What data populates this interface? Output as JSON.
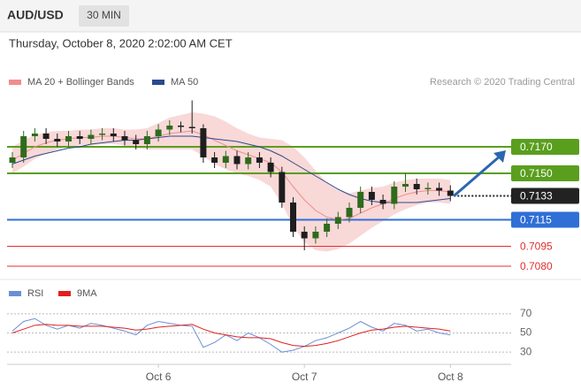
{
  "header": {
    "symbol": "AUD/USD",
    "timeframe": "30 MIN"
  },
  "chart_data": [
    {
      "type": "candlestick",
      "subtitle": "Thursday, October 8, 2020 2:02:00 AM CET",
      "credit": "Research © 2020 Trading Central",
      "open": [
        0.7158,
        0.7162,
        0.7178,
        0.718,
        0.7176,
        0.7174,
        0.7178,
        0.7176,
        0.7179,
        0.718,
        0.7178,
        0.7175,
        0.7172,
        0.7178,
        0.7183,
        0.7186,
        0.7185,
        0.7184,
        0.7162,
        0.7158,
        0.7163,
        0.7157,
        0.7162,
        0.7158,
        0.7151,
        0.7128,
        0.7106,
        0.7101,
        0.7106,
        0.7112,
        0.7117,
        0.7124,
        0.7136,
        0.713,
        0.7127,
        0.714,
        0.7142,
        0.7138,
        0.7139,
        0.7137
      ],
      "high": [
        0.7166,
        0.7182,
        0.7184,
        0.7184,
        0.718,
        0.7182,
        0.7182,
        0.7183,
        0.7184,
        0.7184,
        0.7182,
        0.7179,
        0.7182,
        0.7187,
        0.719,
        0.7189,
        0.7205,
        0.7187,
        0.7166,
        0.7167,
        0.7167,
        0.7166,
        0.7166,
        0.7162,
        0.7155,
        0.7132,
        0.711,
        0.711,
        0.7116,
        0.7121,
        0.7128,
        0.714,
        0.714,
        0.7134,
        0.7144,
        0.715,
        0.7146,
        0.7143,
        0.7143,
        0.7141
      ],
      "low": [
        0.7154,
        0.7158,
        0.7174,
        0.7172,
        0.717,
        0.717,
        0.7172,
        0.7172,
        0.7175,
        0.7174,
        0.7171,
        0.7168,
        0.7168,
        0.7174,
        0.7179,
        0.7181,
        0.718,
        0.7158,
        0.7154,
        0.7154,
        0.7153,
        0.7153,
        0.7154,
        0.7147,
        0.7124,
        0.7102,
        0.7092,
        0.7097,
        0.7102,
        0.7108,
        0.7113,
        0.712,
        0.7126,
        0.7123,
        0.7123,
        0.7136,
        0.7134,
        0.7134,
        0.7133,
        0.7129
      ],
      "close": [
        0.7162,
        0.7178,
        0.718,
        0.7176,
        0.7174,
        0.7178,
        0.7176,
        0.7179,
        0.718,
        0.7178,
        0.7175,
        0.7172,
        0.7178,
        0.7183,
        0.7186,
        0.7185,
        0.7184,
        0.7162,
        0.7158,
        0.7163,
        0.7157,
        0.7162,
        0.7158,
        0.7151,
        0.7128,
        0.7106,
        0.7101,
        0.7106,
        0.7112,
        0.7117,
        0.7124,
        0.7136,
        0.713,
        0.7127,
        0.714,
        0.7142,
        0.7138,
        0.7139,
        0.7137,
        0.7133
      ],
      "colors": {
        "up": "#2f6b1c",
        "down": "#1e1e1e"
      },
      "series": [
        {
          "name": "MA 20 + Bollinger Bands",
          "color": "#ef8e8e",
          "values": [
            0.716,
            0.7165,
            0.717,
            0.7173,
            0.7175,
            0.7176,
            0.7177,
            0.7177,
            0.7178,
            0.7178,
            0.7177,
            0.7176,
            0.7176,
            0.7178,
            0.718,
            0.7181,
            0.7182,
            0.7179,
            0.7175,
            0.7171,
            0.7167,
            0.7164,
            0.7161,
            0.7158,
            0.7151,
            0.714,
            0.713,
            0.7122,
            0.7117,
            0.7115,
            0.7116,
            0.712,
            0.7124,
            0.7127,
            0.7131,
            0.7134,
            0.7136,
            0.7137,
            0.7137,
            0.7136
          ],
          "upper": [
            0.717,
            0.7175,
            0.7179,
            0.7181,
            0.7182,
            0.7182,
            0.7183,
            0.7183,
            0.7184,
            0.7184,
            0.7183,
            0.7183,
            0.7184,
            0.7188,
            0.7192,
            0.7194,
            0.7196,
            0.7195,
            0.7193,
            0.7189,
            0.7184,
            0.718,
            0.7177,
            0.7176,
            0.7175,
            0.717,
            0.7162,
            0.7152,
            0.7143,
            0.7137,
            0.7135,
            0.7137,
            0.7139,
            0.714,
            0.7143,
            0.7145,
            0.7146,
            0.7146,
            0.7146,
            0.7145
          ],
          "lower": [
            0.715,
            0.7155,
            0.7161,
            0.7165,
            0.7168,
            0.717,
            0.7171,
            0.7171,
            0.7172,
            0.7172,
            0.7171,
            0.7169,
            0.7168,
            0.7168,
            0.7168,
            0.7168,
            0.7168,
            0.7163,
            0.7157,
            0.7153,
            0.715,
            0.7148,
            0.7145,
            0.714,
            0.7127,
            0.711,
            0.7098,
            0.7092,
            0.7091,
            0.7093,
            0.7097,
            0.7103,
            0.7109,
            0.7114,
            0.7119,
            0.7123,
            0.7126,
            0.7128,
            0.7128,
            0.7127
          ]
        },
        {
          "name": "MA 50",
          "color": "#2a4b8d",
          "values": [
            0.7157,
            0.716,
            0.7163,
            0.7165,
            0.7167,
            0.7169,
            0.717,
            0.7172,
            0.7173,
            0.7174,
            0.7175,
            0.7175,
            0.7176,
            0.7177,
            0.7178,
            0.7178,
            0.7178,
            0.7177,
            0.7176,
            0.7175,
            0.7174,
            0.7172,
            0.717,
            0.7167,
            0.7163,
            0.7158,
            0.7153,
            0.7148,
            0.7143,
            0.7138,
            0.7134,
            0.7131,
            0.7129,
            0.7128,
            0.7128,
            0.7128,
            0.7128,
            0.7129,
            0.713,
            0.7131
          ]
        }
      ],
      "levels": [
        {
          "value": 0.717,
          "label": "0.7170",
          "color": "#5a9e1e",
          "tag": true,
          "style": "solid"
        },
        {
          "value": 0.715,
          "label": "0.7150",
          "color": "#5a9e1e",
          "tag": true,
          "style": "solid"
        },
        {
          "value": 0.7133,
          "label": "0.7133",
          "color": "#222222",
          "tag": true,
          "style": "dotted"
        },
        {
          "value": 0.7115,
          "label": "0.7115",
          "color": "#2f6fd6",
          "tag": true,
          "style": "solid"
        },
        {
          "value": 0.7095,
          "label": "0.7095",
          "color": "#e03030",
          "tag": false,
          "style": "solid"
        },
        {
          "value": 0.708,
          "label": "0.7080",
          "color": "#e03030",
          "tag": false,
          "style": "solid"
        }
      ],
      "ylim": [
        0.7074,
        0.721
      ]
    },
    {
      "type": "line",
      "categories": [
        null,
        null,
        null,
        null,
        null,
        null,
        null,
        null,
        null,
        null,
        null,
        null,
        null,
        "Oct 6",
        null,
        null,
        null,
        null,
        null,
        null,
        null,
        null,
        null,
        null,
        null,
        null,
        "Oct 7",
        null,
        null,
        null,
        null,
        null,
        null,
        null,
        null,
        null,
        null,
        null,
        null,
        "Oct 8"
      ],
      "series": [
        {
          "name": "RSI",
          "color": "#6b8fd6",
          "values": [
            52,
            62,
            65,
            58,
            54,
            58,
            55,
            60,
            58,
            55,
            52,
            48,
            58,
            62,
            60,
            58,
            57,
            35,
            40,
            48,
            42,
            50,
            45,
            38,
            30,
            32,
            36,
            42,
            45,
            50,
            55,
            62,
            56,
            52,
            60,
            58,
            52,
            54,
            50,
            48
          ]
        },
        {
          "name": "9MA",
          "color": "#e02020",
          "values": [
            50,
            54,
            58,
            59,
            58,
            58,
            57,
            57,
            57,
            56,
            55,
            53,
            54,
            56,
            57,
            58,
            59,
            54,
            50,
            48,
            46,
            45,
            45,
            44,
            40,
            37,
            36,
            37,
            39,
            42,
            46,
            50,
            53,
            54,
            56,
            57,
            56,
            55,
            54,
            52
          ]
        }
      ],
      "ylim": [
        20,
        80
      ],
      "yticks": [
        70,
        50,
        30
      ]
    }
  ]
}
